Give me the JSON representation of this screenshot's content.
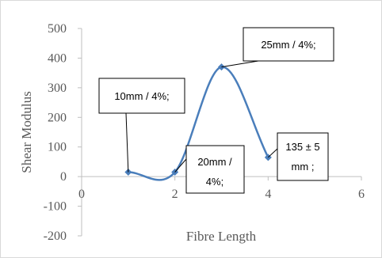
{
  "chart_data": {
    "type": "scatter",
    "title": "",
    "xlabel": "Fibre Length",
    "ylabel": "Shear Modulus",
    "xlim": [
      0,
      6
    ],
    "ylim": [
      -200,
      500
    ],
    "x_ticks": [
      "0",
      "2",
      "4",
      "6"
    ],
    "y_ticks": [
      "-200",
      "-100",
      "0",
      "100",
      "200",
      "300",
      "400",
      "500"
    ],
    "grid": false,
    "legend": "none",
    "smoothed_line": true,
    "series": [
      {
        "x": [
          1,
          2,
          3,
          4
        ],
        "y": [
          15,
          15,
          370,
          65
        ],
        "color": "#4a7ebb"
      }
    ],
    "annotations": [
      {
        "lines": [
          "10mm / 4%;"
        ],
        "point_index": 0
      },
      {
        "lines": [
          "20mm /",
          "4%;"
        ],
        "point_index": 1
      },
      {
        "lines": [
          "25mm / 4%;"
        ],
        "point_index": 2
      },
      {
        "lines": [
          "135 ± 5",
          "mm ;"
        ],
        "point_index": 3
      }
    ]
  }
}
